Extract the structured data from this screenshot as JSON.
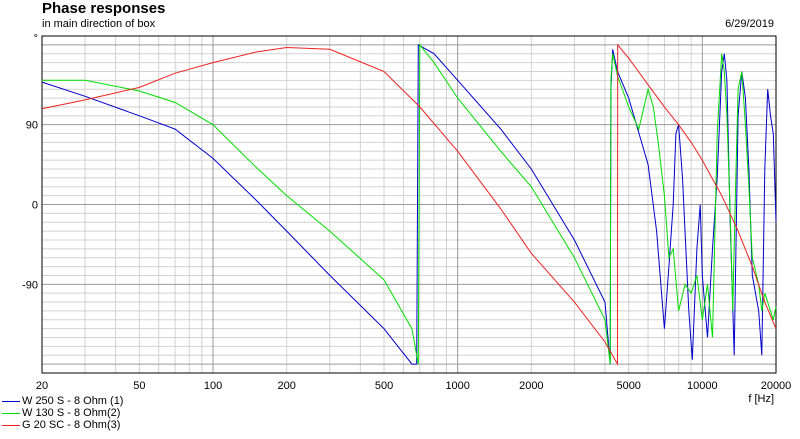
{
  "header": {
    "title": "Phase responses",
    "subtitle": "in main direction of box",
    "date": "6/29/2019"
  },
  "chart_data": {
    "type": "line",
    "xscale": "log",
    "xlim": [
      20,
      20000
    ],
    "ylim": [
      -190,
      190
    ],
    "ylabel": "°",
    "xlabel": "f [Hz]",
    "grid": true,
    "legend_position": "bottom-left",
    "x_ticks": [
      {
        "value": 20,
        "label": "20"
      },
      {
        "value": 50,
        "label": "50"
      },
      {
        "value": 100,
        "label": "100"
      },
      {
        "value": 200,
        "label": "200"
      },
      {
        "value": 500,
        "label": "500"
      },
      {
        "value": 1000,
        "label": "1000"
      },
      {
        "value": 2000,
        "label": "2000"
      },
      {
        "value": 5000,
        "label": "5000"
      },
      {
        "value": 10000,
        "label": "10000"
      },
      {
        "value": 20000,
        "label": "20000"
      }
    ],
    "y_ticks": [
      {
        "value": 90,
        "label": "90"
      },
      {
        "value": 0,
        "label": "0"
      },
      {
        "value": -90,
        "label": "-90"
      }
    ],
    "series": [
      {
        "name": "W 250 S - 8 Ohm (1)",
        "color": "#0000cc",
        "points": [
          [
            20,
            138
          ],
          [
            30,
            122
          ],
          [
            50,
            100
          ],
          [
            70,
            85
          ],
          [
            100,
            52
          ],
          [
            150,
            5
          ],
          [
            200,
            -30
          ],
          [
            300,
            -80
          ],
          [
            500,
            -140
          ],
          [
            650,
            -180
          ],
          [
            680,
            -180
          ],
          [
            690,
            180
          ],
          [
            800,
            170
          ],
          [
            1000,
            140
          ],
          [
            1500,
            85
          ],
          [
            2000,
            40
          ],
          [
            3000,
            -40
          ],
          [
            4000,
            -110
          ],
          [
            4200,
            -180
          ],
          [
            4230,
            130
          ],
          [
            4300,
            175
          ],
          [
            4500,
            150
          ],
          [
            5000,
            120
          ],
          [
            6000,
            45
          ],
          [
            6500,
            -30
          ],
          [
            7000,
            -140
          ],
          [
            7300,
            -70
          ],
          [
            7600,
            0
          ],
          [
            7800,
            80
          ],
          [
            8000,
            90
          ],
          [
            8300,
            30
          ],
          [
            8800,
            -120
          ],
          [
            9100,
            -175
          ],
          [
            9500,
            -50
          ],
          [
            9800,
            0
          ],
          [
            10000,
            -80
          ],
          [
            10500,
            -150
          ],
          [
            11000,
            -50
          ],
          [
            11500,
            30
          ],
          [
            12000,
            150
          ],
          [
            12300,
            170
          ],
          [
            12600,
            140
          ],
          [
            13000,
            -20
          ],
          [
            13500,
            -170
          ],
          [
            14000,
            100
          ],
          [
            14500,
            150
          ],
          [
            15000,
            120
          ],
          [
            15500,
            40
          ],
          [
            16000,
            -80
          ],
          [
            17000,
            -120
          ],
          [
            17500,
            -170
          ],
          [
            18000,
            40
          ],
          [
            18500,
            130
          ],
          [
            19000,
            100
          ],
          [
            19500,
            80
          ],
          [
            20000,
            -20
          ]
        ]
      },
      {
        "name": "W 130 S - 8 Ohm(2)",
        "color": "#00dd00",
        "points": [
          [
            20,
            140
          ],
          [
            30,
            140
          ],
          [
            50,
            128
          ],
          [
            70,
            115
          ],
          [
            100,
            90
          ],
          [
            150,
            42
          ],
          [
            200,
            10
          ],
          [
            300,
            -30
          ],
          [
            500,
            -85
          ],
          [
            650,
            -140
          ],
          [
            690,
            -180
          ],
          [
            700,
            180
          ],
          [
            800,
            160
          ],
          [
            1000,
            120
          ],
          [
            1500,
            60
          ],
          [
            2000,
            20
          ],
          [
            3000,
            -60
          ],
          [
            4000,
            -130
          ],
          [
            4200,
            -180
          ],
          [
            4230,
            140
          ],
          [
            4300,
            170
          ],
          [
            4500,
            145
          ],
          [
            5000,
            110
          ],
          [
            5500,
            85
          ],
          [
            6000,
            130
          ],
          [
            6300,
            110
          ],
          [
            6600,
            70
          ],
          [
            7000,
            10
          ],
          [
            7300,
            -60
          ],
          [
            7600,
            -50
          ],
          [
            8000,
            -120
          ],
          [
            8500,
            -90
          ],
          [
            9000,
            -100
          ],
          [
            9500,
            -80
          ],
          [
            10000,
            -130
          ],
          [
            10500,
            -90
          ],
          [
            11000,
            -150
          ],
          [
            11500,
            80
          ],
          [
            12000,
            170
          ],
          [
            12300,
            150
          ],
          [
            12600,
            100
          ],
          [
            13000,
            -10
          ],
          [
            13300,
            -120
          ],
          [
            13700,
            30
          ],
          [
            14000,
            130
          ],
          [
            14500,
            150
          ],
          [
            15000,
            90
          ],
          [
            15500,
            20
          ],
          [
            16000,
            -60
          ],
          [
            17000,
            -90
          ],
          [
            17500,
            -120
          ],
          [
            18000,
            -100
          ],
          [
            19000,
            -120
          ],
          [
            19500,
            -130
          ],
          [
            20000,
            -115
          ]
        ]
      },
      {
        "name": "G 20 SC - 8 Ohm(3)",
        "color": "#ee2222",
        "points": [
          [
            20,
            108
          ],
          [
            30,
            118
          ],
          [
            50,
            132
          ],
          [
            70,
            148
          ],
          [
            100,
            160
          ],
          [
            150,
            172
          ],
          [
            200,
            177
          ],
          [
            300,
            175
          ],
          [
            500,
            150
          ],
          [
            700,
            110
          ],
          [
            1000,
            60
          ],
          [
            1500,
            -5
          ],
          [
            2000,
            -55
          ],
          [
            3000,
            -110
          ],
          [
            4000,
            -155
          ],
          [
            4500,
            -180
          ],
          [
            4510,
            180
          ],
          [
            5000,
            165
          ],
          [
            6000,
            135
          ],
          [
            7000,
            110
          ],
          [
            8000,
            90
          ],
          [
            9000,
            70
          ],
          [
            10000,
            50
          ],
          [
            12000,
            10
          ],
          [
            14000,
            -30
          ],
          [
            16000,
            -70
          ],
          [
            18000,
            -110
          ],
          [
            20000,
            -140
          ]
        ]
      }
    ]
  }
}
